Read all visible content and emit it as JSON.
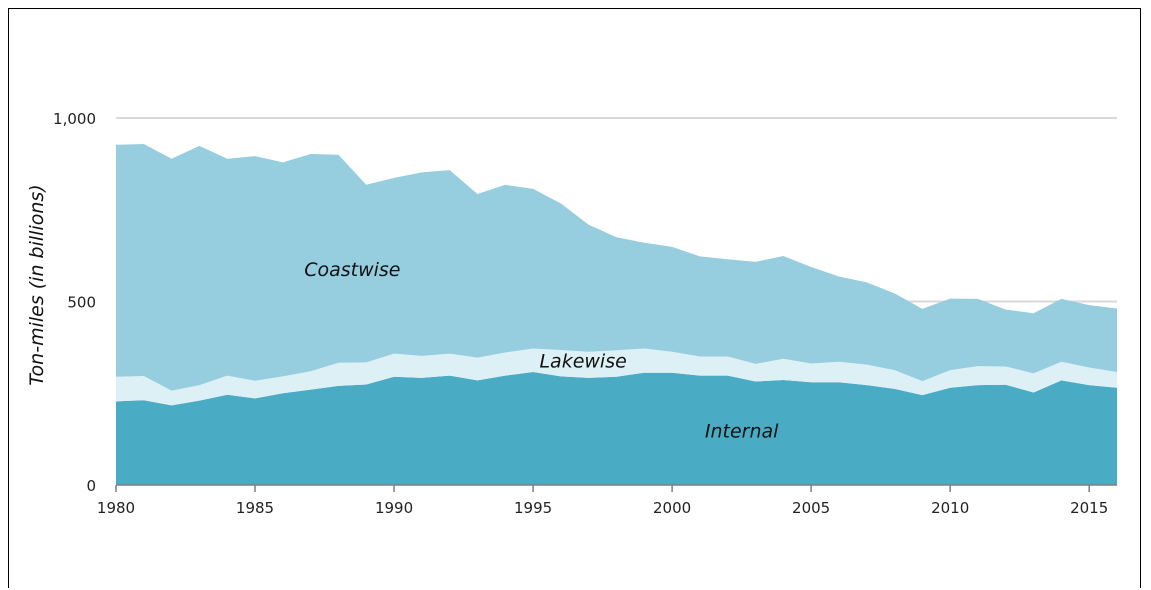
{
  "chart_data": {
    "type": "area",
    "stacked": true,
    "title": "",
    "xlabel": "",
    "ylabel": "Ton-miles (in billions)",
    "ylim": [
      0,
      1000
    ],
    "yticks": [
      0,
      500,
      1000
    ],
    "ytick_labels": [
      "0",
      "500",
      "1,000"
    ],
    "xticks": [
      1980,
      1985,
      1990,
      1995,
      2000,
      2005,
      2010,
      2015
    ],
    "x": [
      1980,
      1981,
      1982,
      1983,
      1984,
      1985,
      1986,
      1987,
      1988,
      1989,
      1990,
      1991,
      1992,
      1993,
      1994,
      1995,
      1996,
      1997,
      1998,
      1999,
      2000,
      2001,
      2002,
      2003,
      2004,
      2005,
      2006,
      2007,
      2008,
      2009,
      2010,
      2011,
      2012,
      2013,
      2014,
      2015,
      2016
    ],
    "grid": true,
    "legend": "none",
    "series": [
      {
        "name": "Internal",
        "color": "#4aabc5",
        "values": [
          228,
          231,
          217,
          230,
          246,
          236,
          250,
          260,
          270,
          274,
          295,
          292,
          298,
          285,
          298,
          308,
          296,
          292,
          295,
          306,
          306,
          298,
          298,
          282,
          286,
          280,
          280,
          272,
          262,
          245,
          265,
          272,
          273,
          252,
          285,
          272,
          265
        ]
      },
      {
        "name": "Lakewise",
        "color": "#ddf0f5",
        "values": [
          67,
          66,
          40,
          42,
          52,
          48,
          46,
          50,
          63,
          60,
          63,
          60,
          60,
          62,
          63,
          64,
          72,
          71,
          72,
          66,
          57,
          52,
          52,
          48,
          58,
          51,
          56,
          56,
          51,
          38,
          48,
          52,
          50,
          52,
          51,
          48,
          43
        ]
      },
      {
        "name": "Coastwise",
        "color": "#96cddf",
        "values": [
          632,
          632,
          632,
          652,
          591,
          612,
          583,
          592,
          567,
          484,
          479,
          500,
          500,
          446,
          457,
          435,
          399,
          346,
          308,
          288,
          286,
          273,
          265,
          278,
          280,
          263,
          232,
          224,
          209,
          197,
          195,
          183,
          155,
          164,
          171,
          170,
          173
        ]
      }
    ]
  }
}
